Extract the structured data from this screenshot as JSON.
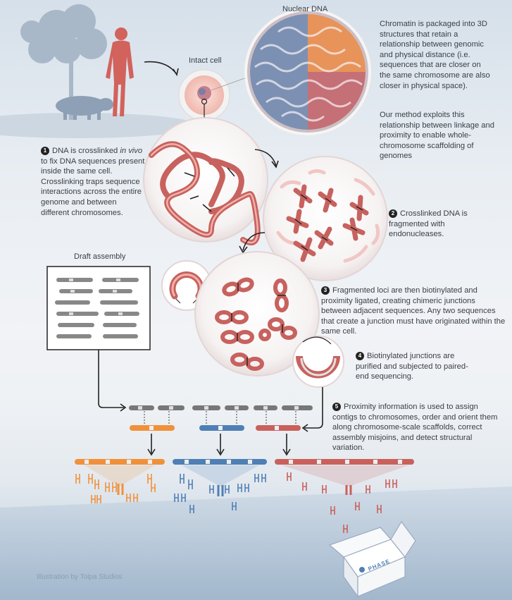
{
  "labels": {
    "nuclear_dna": "Nuclear DNA",
    "intact_cell": "Intact cell",
    "draft_assembly": "Draft assembly",
    "credit": "Illustration by Tolpa Studios",
    "box_logo": "PHASE"
  },
  "intro": {
    "para1": "Chromatin is packaged into 3D structures that retain a relationship between genomic and physical distance (i.e. sequences that are closer on the same chromosome are also closer in physical space).",
    "para2": "Our method exploits this relationship between linkage and proximity to enable whole-chromosome scaffolding of genomes"
  },
  "steps": [
    {
      "num": "1",
      "text_pre": "DNA is crosslinked ",
      "text_em": "in vivo",
      "text_post": " to fix DNA sequences present inside the same cell. Crosslinking traps sequence interactions across the entire genome and between different chromosomes."
    },
    {
      "num": "2",
      "text": "Crosslinked DNA is fragmented with endonucleases."
    },
    {
      "num": "3",
      "text": "Fragmented loci are then biotinylated and proximity ligated, creating chimeric junctions between adjacent sequences. Any two sequences that create a junction must have originated within the same cell."
    },
    {
      "num": "4",
      "text": "Biotinylated junctions are purified and subjected to paired-end sequencing."
    },
    {
      "num": "5",
      "text": "Proximity information is used to assign contigs to chromosomes, order and orient them along chromosome-scale scaffolds, correct assembly misjoins, and detect structural variation."
    }
  ],
  "colors": {
    "dna": "#d9736f",
    "orange": "#f0913a",
    "blue": "#4f7fb5",
    "red": "#c9605c",
    "ink": "#2e3540"
  },
  "icons": [
    "tree-icon",
    "pig-icon",
    "human-icon",
    "box-icon"
  ]
}
